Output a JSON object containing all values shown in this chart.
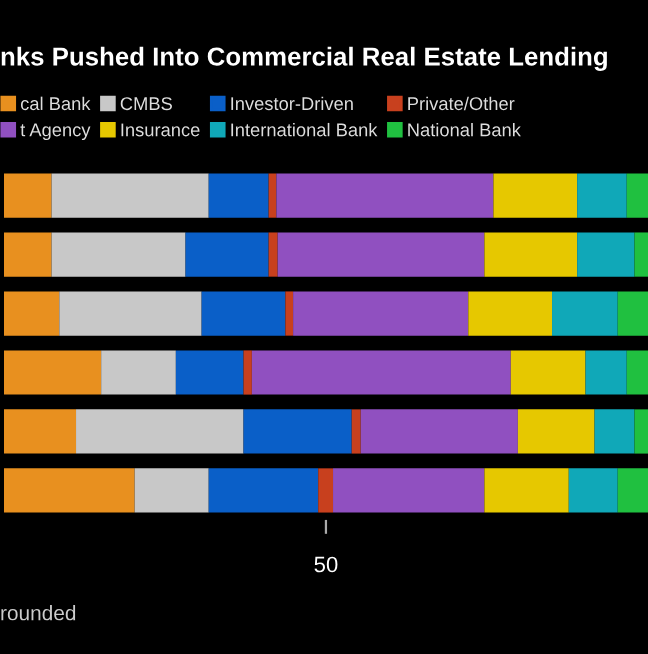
{
  "chart_data": {
    "type": "bar",
    "orientation": "horizontal",
    "stacked": true,
    "title": "nks Pushed Into Commercial Real Estate Lending",
    "annotations": [
      "rounded"
    ],
    "categories": [
      null,
      null,
      null,
      null,
      null,
      null
    ],
    "series": [
      {
        "name": "cal Bank",
        "color": "#e8901f",
        "values": [
          7.4,
          7.4,
          8.6,
          15.1,
          11.2,
          20.3
        ]
      },
      {
        "name": "CMBS",
        "color": "#c8c8c8",
        "values": [
          24.4,
          20.8,
          22.1,
          11.6,
          26.0,
          11.5
        ]
      },
      {
        "name": "Investor-Driven",
        "color": "#0a5fc8",
        "values": [
          9.3,
          12.9,
          13.0,
          10.5,
          16.8,
          17.0
        ]
      },
      {
        "name": "Private/Other",
        "color": "#c8401e",
        "values": [
          1.2,
          1.4,
          1.2,
          1.3,
          1.4,
          2.3
        ]
      },
      {
        "name": "t Agency",
        "color": "#9050c0",
        "values": [
          33.7,
          32.1,
          27.2,
          40.2,
          24.4,
          23.5
        ]
      },
      {
        "name": "Insurance",
        "color": "#e6c800",
        "values": [
          13.0,
          14.4,
          13.0,
          11.6,
          11.9,
          13.1
        ]
      },
      {
        "name": "International Bank",
        "color": "#10a8b8",
        "values": [
          7.7,
          8.9,
          10.2,
          6.4,
          6.2,
          7.6
        ]
      },
      {
        "name": "National Bank",
        "color": "#20c040",
        "values": [
          3.3,
          2.1,
          4.7,
          3.3,
          2.1,
          4.7
        ]
      }
    ],
    "xlim": [
      0,
      100
    ],
    "xticks": [
      50
    ],
    "tick_labels": "x",
    "grid": false,
    "legend": "top"
  }
}
